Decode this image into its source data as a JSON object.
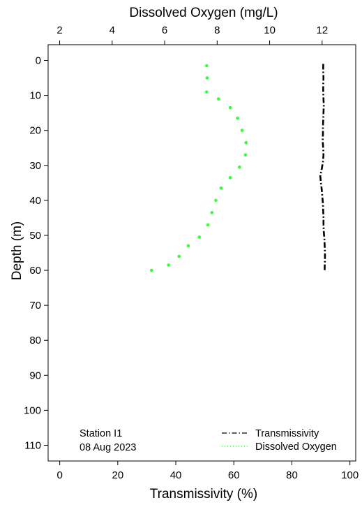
{
  "chart_data": {
    "type": "line",
    "annotation": [
      "Station I1",
      "08 Aug 2023"
    ],
    "y_axis": {
      "label": "Depth (m)",
      "lim": [
        -4.5,
        114.5
      ],
      "inverted": true,
      "ticks": [
        0,
        10,
        20,
        30,
        40,
        50,
        60,
        70,
        80,
        90,
        100,
        110
      ]
    },
    "x_axis_bottom": {
      "label": "Transmissivity (%)",
      "lim": [
        -4,
        102
      ],
      "ticks": [
        0,
        20,
        40,
        60,
        80,
        100
      ]
    },
    "x_axis_top": {
      "label": "Dissolved Oxygen (mg/L)",
      "lim": [
        1.56,
        13.28
      ],
      "ticks": [
        2,
        4,
        6,
        8,
        10,
        12
      ]
    },
    "legend": {
      "placement": "bottom-right",
      "entries": [
        "Transmissivity",
        "Dissolved Oxygen"
      ]
    },
    "grid": false,
    "series": [
      {
        "name": "Transmissivity",
        "axis": "bottom",
        "color": "#000000",
        "style": "dashdot",
        "points": [
          [
            90.8,
            1
          ],
          [
            90.8,
            3
          ],
          [
            90.9,
            5
          ],
          [
            90.8,
            7
          ],
          [
            90.8,
            9
          ],
          [
            90.9,
            11
          ],
          [
            91.0,
            13
          ],
          [
            90.9,
            15
          ],
          [
            90.8,
            17
          ],
          [
            90.7,
            19
          ],
          [
            90.7,
            21
          ],
          [
            90.6,
            23
          ],
          [
            90.8,
            25
          ],
          [
            90.9,
            27
          ],
          [
            90.7,
            29
          ],
          [
            90.3,
            31
          ],
          [
            89.8,
            33
          ],
          [
            90.0,
            35
          ],
          [
            90.3,
            37
          ],
          [
            90.5,
            39
          ],
          [
            90.7,
            41
          ],
          [
            90.8,
            43
          ],
          [
            90.9,
            45
          ],
          [
            90.9,
            47
          ],
          [
            91.0,
            49
          ],
          [
            91.2,
            51
          ],
          [
            91.3,
            53
          ],
          [
            91.4,
            55
          ],
          [
            91.4,
            57
          ],
          [
            91.3,
            59
          ],
          [
            91.3,
            60
          ]
        ]
      },
      {
        "name": "Dissolved Oxygen",
        "axis": "top",
        "color": "#33ff33",
        "style": "dotted",
        "points": [
          [
            7.6,
            1.5
          ],
          [
            7.62,
            5
          ],
          [
            7.6,
            9
          ],
          [
            8.05,
            11
          ],
          [
            8.5,
            13.5
          ],
          [
            8.78,
            16.5
          ],
          [
            8.95,
            20
          ],
          [
            9.1,
            23.5
          ],
          [
            9.08,
            27
          ],
          [
            8.85,
            30.5
          ],
          [
            8.5,
            33.5
          ],
          [
            8.15,
            36.5
          ],
          [
            7.95,
            40
          ],
          [
            7.8,
            43.5
          ],
          [
            7.65,
            47
          ],
          [
            7.32,
            50.5
          ],
          [
            6.9,
            53
          ],
          [
            6.55,
            56
          ],
          [
            6.15,
            58.5
          ],
          [
            5.5,
            60
          ]
        ]
      }
    ]
  }
}
